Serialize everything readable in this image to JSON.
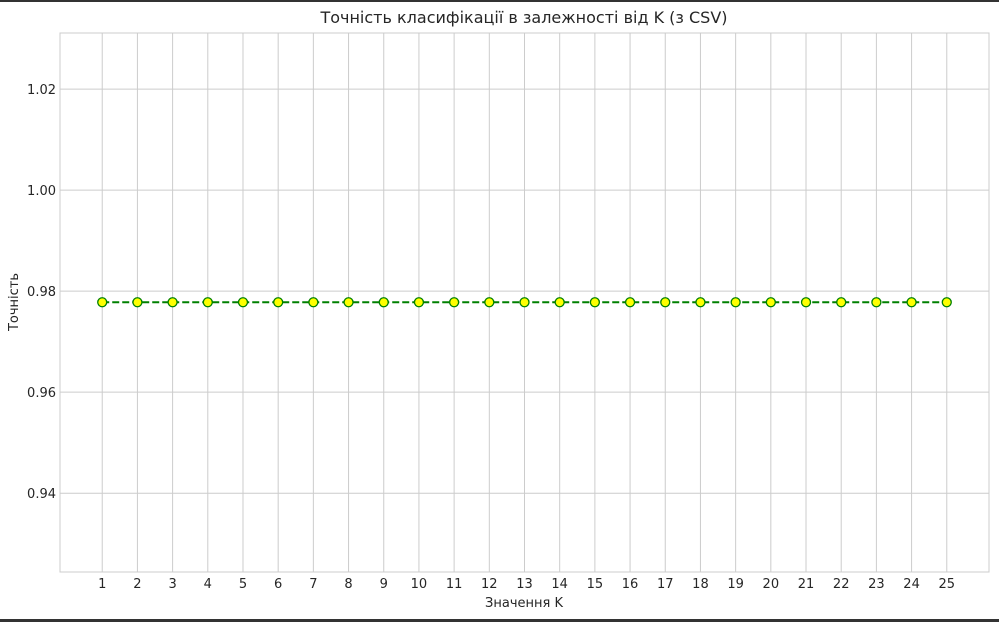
{
  "chart_data": {
    "type": "line",
    "title": "Точність класифікації в залежності від K (з CSV)",
    "xlabel": "Значення K",
    "ylabel": "Точність",
    "x": [
      1,
      2,
      3,
      4,
      5,
      6,
      7,
      8,
      9,
      10,
      11,
      12,
      13,
      14,
      15,
      16,
      17,
      18,
      19,
      20,
      21,
      22,
      23,
      24,
      25
    ],
    "series": [
      {
        "values": [
          0.9778,
          0.9778,
          0.9778,
          0.9778,
          0.9778,
          0.9778,
          0.9778,
          0.9778,
          0.9778,
          0.9778,
          0.9778,
          0.9778,
          0.9778,
          0.9778,
          0.9778,
          0.9778,
          0.9778,
          0.9778,
          0.9778,
          0.9778,
          0.9778,
          0.9778,
          0.9778,
          0.9778,
          0.9778
        ],
        "line_color": "#008000",
        "line_style": "dashed",
        "marker": "circle",
        "marker_face": "#ffff00",
        "marker_edge": "#008000"
      }
    ],
    "xlim": [
      -0.2,
      26.2
    ],
    "ylim": [
      0.9244,
      1.0311
    ],
    "yticks": [
      0.94,
      0.96,
      0.98,
      1.0,
      1.02
    ],
    "ytick_labels": [
      "0.94",
      "0.96",
      "0.98",
      "1.00",
      "1.02"
    ],
    "grid": true,
    "grid_color": "#cccccc",
    "spine_color": "#cccccc",
    "background": "#ffffff"
  }
}
